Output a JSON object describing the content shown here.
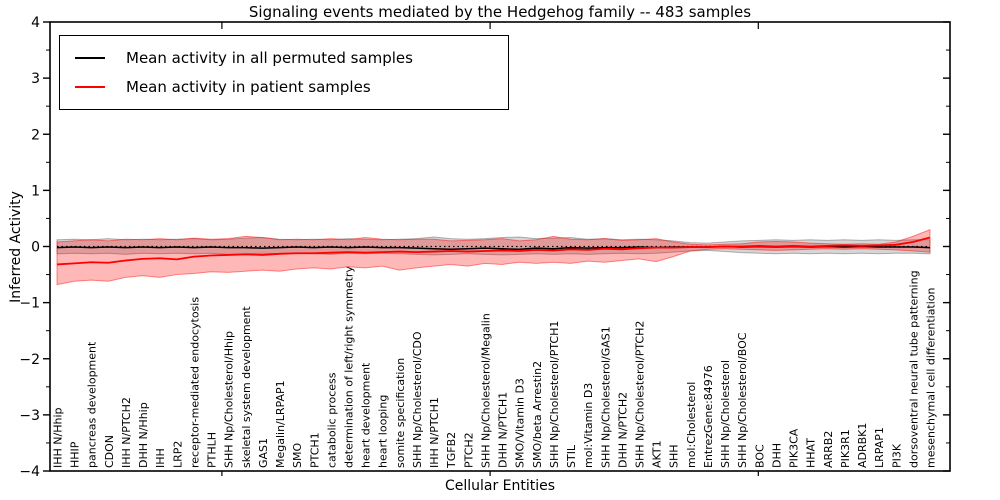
{
  "title": "Signaling events mediated by the Hedgehog family -- 483 samples",
  "legend": {
    "items": [
      {
        "label": "Mean activity in all permuted samples",
        "color": "#000000"
      },
      {
        "label": "Mean activity in patient samples",
        "color": "#ff0000"
      }
    ]
  },
  "colors": {
    "permuted_line": "#000000",
    "patient_line": "#ff0000",
    "permuted_band_fill": "rgba(0,0,0,0.16)",
    "permuted_band_edge": "rgba(0,0,0,0.28)",
    "patient_band_fill": "rgba(255,0,0,0.28)",
    "patient_band_edge": "rgba(255,0,0,0.45)",
    "background": "#ffffff"
  },
  "chart_data": {
    "type": "line",
    "title": "Signaling events mediated by the Hedgehog family -- 483 samples",
    "xlabel": "Cellular Entities",
    "ylabel": "Inferred Activity",
    "ylim": [
      -4,
      4
    ],
    "ytick_values": [
      4,
      3,
      2,
      1,
      0,
      -1,
      -2,
      -3,
      -4
    ],
    "ytick_labels": [
      "4",
      "3",
      "2",
      "1",
      "0",
      "−1",
      "−2",
      "−3",
      "−4"
    ],
    "y_minor_step": 0.5,
    "zero_line": {
      "y": 0,
      "style": "dotted",
      "color": "#000000"
    },
    "grid": false,
    "legend_position": "upper left",
    "categories": [
      "IHH N/Hhip",
      "HHIP",
      "pancreas development",
      "CDON",
      "IHH N/PTCH2",
      "DHH N/Hhip",
      "IHH",
      "LRP2",
      "receptor-mediated endocytosis",
      "PTHLH",
      "SHH Np/Cholesterol/Hhip",
      "skeletal system development",
      "GAS1",
      "Megalin/LRPAP1",
      "SMO",
      "PTCH1",
      "catabolic process",
      "determination of left/right symmetry",
      "heart development",
      "heart looping",
      "somite specification",
      "SHH Np/Cholesterol/CDO",
      "IHH N/PTCH1",
      "TGFB2",
      "PTCH2",
      "SHH Np/Cholesterol/Megalin",
      "DHH N/PTCH1",
      "SMO/Vitamin D3",
      "SMO/beta Arrestin2",
      "SHH Np/Cholesterol/PTCH1",
      "STIL",
      "mol:Vitamin D3",
      "SHH Np/Cholesterol/GAS1",
      "DHH N/PTCH2",
      "SHH Np/Cholesterol/PTCH2",
      "AKT1",
      "SHH",
      "mol:Cholesterol",
      "EntrezGene:84976",
      "SHH Np/Cholesterol",
      "SHH Np/Cholesterol/BOC",
      "BOC",
      "DHH",
      "PIK3CA",
      "HHAT",
      "ARRB2",
      "PIK3R1",
      "ADRBK1",
      "LRPAP1",
      "PI3K",
      "dorsoventral neural tube patterning",
      "mesenchymal cell differentiation"
    ],
    "series": [
      {
        "name": "Mean activity in all permuted samples",
        "color": "#000000",
        "values": [
          -0.02,
          -0.01,
          -0.02,
          -0.01,
          -0.02,
          -0.01,
          -0.02,
          -0.01,
          -0.02,
          -0.01,
          -0.02,
          -0.02,
          -0.03,
          -0.02,
          -0.01,
          -0.02,
          -0.01,
          -0.02,
          -0.01,
          -0.02,
          -0.02,
          -0.03,
          -0.04,
          -0.05,
          -0.04,
          -0.03,
          -0.04,
          -0.05,
          -0.03,
          -0.04,
          -0.02,
          -0.03,
          -0.02,
          -0.02,
          -0.01,
          -0.02,
          -0.01,
          -0.01,
          -0.01,
          0.0,
          -0.01,
          0.0,
          -0.01,
          0.0,
          -0.01,
          0.0,
          -0.01,
          0.0,
          -0.01,
          -0.01,
          -0.01,
          -0.02
        ],
        "band_upper": [
          0.12,
          0.13,
          0.12,
          0.14,
          0.12,
          0.13,
          0.12,
          0.13,
          0.14,
          0.12,
          0.13,
          0.15,
          0.16,
          0.13,
          0.12,
          0.13,
          0.12,
          0.14,
          0.13,
          0.12,
          0.13,
          0.14,
          0.17,
          0.14,
          0.13,
          0.14,
          0.16,
          0.17,
          0.14,
          0.15,
          0.16,
          0.13,
          0.14,
          0.12,
          0.13,
          0.12,
          0.1,
          0.07,
          0.06,
          0.08,
          0.1,
          0.11,
          0.12,
          0.11,
          0.12,
          0.11,
          0.12,
          0.11,
          0.12,
          0.11,
          0.12,
          0.12
        ],
        "band_lower": [
          -0.13,
          -0.12,
          -0.13,
          -0.12,
          -0.14,
          -0.12,
          -0.13,
          -0.12,
          -0.13,
          -0.12,
          -0.14,
          -0.13,
          -0.12,
          -0.13,
          -0.12,
          -0.13,
          -0.14,
          -0.12,
          -0.13,
          -0.12,
          -0.13,
          -0.14,
          -0.15,
          -0.14,
          -0.13,
          -0.14,
          -0.15,
          -0.14,
          -0.13,
          -0.14,
          -0.13,
          -0.14,
          -0.13,
          -0.12,
          -0.13,
          -0.12,
          -0.1,
          -0.08,
          -0.07,
          -0.09,
          -0.11,
          -0.12,
          -0.13,
          -0.12,
          -0.13,
          -0.12,
          -0.13,
          -0.12,
          -0.13,
          -0.12,
          -0.12,
          -0.13
        ]
      },
      {
        "name": "Mean activity in patient samples",
        "color": "#ff0000",
        "values": [
          -0.32,
          -0.3,
          -0.28,
          -0.29,
          -0.25,
          -0.22,
          -0.21,
          -0.23,
          -0.18,
          -0.16,
          -0.15,
          -0.14,
          -0.15,
          -0.13,
          -0.12,
          -0.12,
          -0.11,
          -0.1,
          -0.11,
          -0.1,
          -0.09,
          -0.1,
          -0.09,
          -0.08,
          -0.09,
          -0.08,
          -0.07,
          -0.08,
          -0.06,
          -0.07,
          -0.05,
          -0.06,
          -0.04,
          -0.05,
          -0.03,
          -0.02,
          -0.02,
          -0.01,
          -0.01,
          0.0,
          0.0,
          0.01,
          0.0,
          0.01,
          0.0,
          0.01,
          0.02,
          0.01,
          0.02,
          0.03,
          0.08,
          0.16
        ],
        "band_upper": [
          0.08,
          0.1,
          0.12,
          0.1,
          0.13,
          0.12,
          0.14,
          0.12,
          0.15,
          0.13,
          0.14,
          0.18,
          0.16,
          0.12,
          0.13,
          0.12,
          0.14,
          0.12,
          0.16,
          0.13,
          0.12,
          0.13,
          0.13,
          0.1,
          0.11,
          0.12,
          0.14,
          0.1,
          0.12,
          0.18,
          0.13,
          0.12,
          0.14,
          0.11,
          0.12,
          0.14,
          0.08,
          0.04,
          0.03,
          0.04,
          0.05,
          0.08,
          0.09,
          0.08,
          0.06,
          0.05,
          0.04,
          0.05,
          0.04,
          0.08,
          0.18,
          0.3
        ],
        "band_lower": [
          -0.68,
          -0.62,
          -0.6,
          -0.62,
          -0.55,
          -0.52,
          -0.55,
          -0.5,
          -0.48,
          -0.45,
          -0.46,
          -0.44,
          -0.42,
          -0.44,
          -0.4,
          -0.38,
          -0.4,
          -0.36,
          -0.38,
          -0.35,
          -0.42,
          -0.38,
          -0.35,
          -0.32,
          -0.35,
          -0.3,
          -0.32,
          -0.28,
          -0.3,
          -0.28,
          -0.3,
          -0.26,
          -0.28,
          -0.25,
          -0.22,
          -0.27,
          -0.18,
          -0.08,
          -0.05,
          -0.04,
          -0.05,
          -0.06,
          -0.07,
          -0.06,
          -0.05,
          -0.04,
          -0.05,
          -0.04,
          -0.05,
          -0.06,
          -0.08,
          -0.1
        ]
      }
    ]
  }
}
